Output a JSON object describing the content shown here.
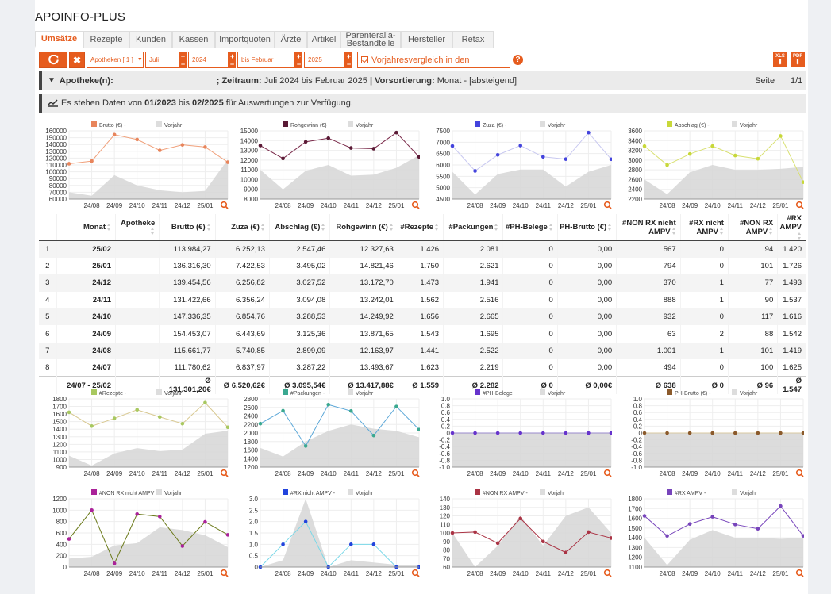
{
  "app": {
    "title": "APOINFO-PLUS"
  },
  "tabs": [
    {
      "label": "Umsätze",
      "active": true
    },
    {
      "label": "Rezepte"
    },
    {
      "label": "Kunden"
    },
    {
      "label": "Kassen"
    },
    {
      "label": "Importquoten"
    },
    {
      "label": "Ärzte"
    },
    {
      "label": "Artikel"
    },
    {
      "label": "Parenteralia-\nBestandteile"
    },
    {
      "label": "Hersteller"
    },
    {
      "label": "Retax"
    }
  ],
  "toolbar": {
    "refresh_icon": "refresh-icon",
    "clear_icon": "close-icon",
    "apotheken_select": "Apotheken [ 1 ]",
    "from_month": "Juli",
    "from_year": "2024",
    "to_month": "bis Februar",
    "to_year": "2025",
    "compare_label": "Vorjahresvergleich in den",
    "help": "?",
    "xls": "XLS",
    "pdf": "PDF"
  },
  "filter_bar": {
    "label": "Apotheke(n):",
    "zeitraum_prefix": "; Zeitraum:",
    "zeitraum_value": "Juli 2024 bis Februar 2025",
    "sep": "|",
    "sort_prefix": "Vorsortierung:",
    "sort_value": "Monat - [absteigend]",
    "page_label": "Seite",
    "page_value": "1/1"
  },
  "availability": {
    "prefix": "Es stehen Daten von",
    "from": "01/2023",
    "mid": "bis",
    "to": "02/2025",
    "suffix": "für Auswertungen zur Verfügung."
  },
  "table": {
    "headers": [
      "",
      "Monat",
      "Apotheke",
      "Brutto (€)",
      "Zuza (€)",
      "Abschlag (€)",
      "Rohgewinn (€)",
      "#Rezepte",
      "#Packungen",
      "#PH-Belege",
      "PH-Brutto (€)",
      "#NON RX nicht AMPV",
      "#RX nicht AMPV",
      "#NON RX AMPV",
      "#RX AMPV"
    ],
    "rows": [
      [
        "1",
        "25/02",
        "",
        "113.984,27",
        "6.252,13",
        "2.547,46",
        "12.327,63",
        "1.426",
        "2.081",
        "0",
        "0,00",
        "567",
        "0",
        "94",
        "1.420"
      ],
      [
        "2",
        "25/01",
        "",
        "136.316,30",
        "7.422,53",
        "3.495,02",
        "14.821,46",
        "1.750",
        "2.621",
        "0",
        "0,00",
        "794",
        "0",
        "101",
        "1.726"
      ],
      [
        "3",
        "24/12",
        "",
        "139.454,56",
        "6.256,82",
        "3.027,52",
        "13.172,70",
        "1.473",
        "1.941",
        "0",
        "0,00",
        "370",
        "1",
        "77",
        "1.493"
      ],
      [
        "4",
        "24/11",
        "",
        "131.422,66",
        "6.356,24",
        "3.094,08",
        "13.242,01",
        "1.562",
        "2.516",
        "0",
        "0,00",
        "888",
        "1",
        "90",
        "1.537"
      ],
      [
        "5",
        "24/10",
        "",
        "147.336,35",
        "6.854,76",
        "3.288,53",
        "14.249,92",
        "1.656",
        "2.665",
        "0",
        "0,00",
        "932",
        "0",
        "117",
        "1.616"
      ],
      [
        "6",
        "24/09",
        "",
        "154.453,07",
        "6.443,69",
        "3.125,36",
        "13.871,65",
        "1.543",
        "1.695",
        "0",
        "0,00",
        "63",
        "2",
        "88",
        "1.542"
      ],
      [
        "7",
        "24/08",
        "",
        "115.661,77",
        "5.740,85",
        "2.899,09",
        "12.163,97",
        "1.441",
        "2.522",
        "0",
        "0,00",
        "1.001",
        "1",
        "101",
        "1.419"
      ],
      [
        "8",
        "24/07",
        "",
        "111.780,62",
        "6.837,97",
        "3.287,22",
        "13.493,67",
        "1.623",
        "2.219",
        "0",
        "0,00",
        "494",
        "0",
        "100",
        "1.625"
      ]
    ],
    "footer": [
      "",
      "24/07 - 25/02",
      "",
      "Ø 131.301,20€",
      "Ø 6.520,62€",
      "Ø 3.095,54€",
      "Ø 13.417,88€",
      "Ø 1.559",
      "Ø 2.282",
      "Ø 0",
      "Ø 0,00€",
      "Ø 638",
      "Ø 0",
      "Ø 96",
      "Ø 1.547"
    ]
  },
  "charts_common": {
    "months": [
      "24/07",
      "24/08",
      "24/09",
      "24/10",
      "24/11",
      "24/12",
      "25/01",
      "25/02"
    ],
    "xticks": [
      "24/08",
      "24/09",
      "24/10",
      "24/11",
      "24/12",
      "25/01"
    ],
    "vorjahr_label": "Vorjahr",
    "zoom_icon": "zoom-icon"
  },
  "chart_data": [
    {
      "type": "line",
      "legend": "Brutto (€) -",
      "color": "#f0a07a",
      "marker": "#e8855c",
      "ticks": [
        "160000",
        "150000",
        "140000",
        "130000",
        "120000",
        "110000",
        "100000",
        "90000",
        "80000",
        "70000",
        "60000"
      ],
      "ylim": [
        60000,
        160000
      ],
      "values": [
        111780,
        115661,
        154453,
        147336,
        131422,
        139454,
        136316,
        113984
      ],
      "prev": [
        70000,
        65000,
        95000,
        80000,
        73000,
        70000,
        72000,
        118000
      ]
    },
    {
      "type": "line",
      "legend": "Rohgewinn (€)",
      "color": "#7a2a4a",
      "marker": "#5a1a35",
      "ticks": [
        "15000",
        "14000",
        "13000",
        "12000",
        "11000",
        "10000",
        "9000",
        "8000"
      ],
      "ylim": [
        8000,
        15000
      ],
      "values": [
        13493,
        12163,
        13871,
        14249,
        13242,
        13172,
        14821,
        12327
      ],
      "prev": [
        11000,
        9000,
        10900,
        11500,
        10400,
        10500,
        11200,
        12500
      ]
    },
    {
      "type": "line",
      "legend": "Zuza (€) -",
      "color": "#c8c8f0",
      "marker": "#4444dd",
      "ticks": [
        "7500",
        "7000",
        "6500",
        "6000",
        "5500",
        "5000",
        "4500"
      ],
      "ylim": [
        4500,
        7500
      ],
      "values": [
        6837,
        5740,
        6443,
        6854,
        6356,
        6256,
        7422,
        6252
      ],
      "prev": [
        5700,
        4700,
        5600,
        5800,
        5800,
        5050,
        5700,
        6000
      ]
    },
    {
      "type": "line",
      "legend": "Abschlag (€) -",
      "color": "#d8e070",
      "marker": "#c8d83a",
      "ticks": [
        "3600",
        "3400",
        "3200",
        "3000",
        "2800",
        "2600",
        "2400",
        "2200"
      ],
      "ylim": [
        2200,
        3600
      ],
      "values": [
        3287,
        2899,
        3125,
        3288,
        3094,
        3027,
        3495,
        2547
      ],
      "prev": [
        2600,
        2300,
        2750,
        2900,
        2800,
        2800,
        2820,
        2860
      ]
    },
    {
      "type": "line",
      "legend": "#Rezepte -",
      "color": "#d8c890",
      "marker": "#a8c860",
      "ticks": [
        "1800",
        "1700",
        "1600",
        "1500",
        "1400",
        "1300",
        "1200",
        "1100",
        "1000",
        "900"
      ],
      "ylim": [
        900,
        1800
      ],
      "values": [
        1623,
        1441,
        1543,
        1656,
        1562,
        1473,
        1750,
        1426
      ],
      "prev": [
        1050,
        920,
        1080,
        1150,
        1110,
        1130,
        1340,
        1380
      ]
    },
    {
      "type": "line",
      "legend": "#Packungen -",
      "color": "#5da8d8",
      "marker": "#3aa890",
      "ticks": [
        "2800",
        "2600",
        "2400",
        "2200",
        "2000",
        "1800",
        "1600",
        "1400",
        "1200"
      ],
      "ylim": [
        1200,
        2800
      ],
      "values": [
        2219,
        2522,
        1695,
        2665,
        2516,
        1941,
        2621,
        2081
      ],
      "prev": [
        1650,
        1450,
        1800,
        2050,
        2200,
        2100,
        2050,
        1900
      ]
    },
    {
      "type": "line",
      "legend": "#PH-Belege",
      "color": "#9988cc",
      "marker": "#6633cc",
      "ticks": [
        "1.0",
        "0.8",
        "0.6",
        "0.4",
        "0.2",
        "0",
        "-0.2",
        "-0.4",
        "-0.6",
        "-0.8",
        "-1.0"
      ],
      "ylim": [
        -1,
        1
      ],
      "values": [
        0,
        0,
        0,
        0,
        0,
        0,
        0,
        0
      ],
      "prev": [
        0,
        0,
        0,
        0,
        0,
        0,
        0,
        0
      ]
    },
    {
      "type": "line",
      "legend": "PH-Brutto (€) -",
      "color": "#d8c8a0",
      "marker": "#8b5a2b",
      "ticks": [
        "1.0",
        "0.8",
        "0.6",
        "0.4",
        "0.2",
        "0",
        "-0.2",
        "-0.4",
        "-0.6",
        "-0.8",
        "-1.0"
      ],
      "ylim": [
        -1,
        1
      ],
      "values": [
        0,
        0,
        0,
        0,
        0,
        0,
        0,
        0
      ],
      "prev": [
        0,
        0,
        0,
        0,
        0,
        0,
        0,
        0
      ]
    },
    {
      "type": "line",
      "legend": "#NON RX nicht AMPV",
      "color": "#6b7a1a",
      "marker": "#aa2299",
      "ticks": [
        "1200",
        "1000",
        "800",
        "600",
        "400",
        "200",
        "0"
      ],
      "ylim": [
        0,
        1200
      ],
      "values": [
        494,
        1001,
        63,
        932,
        888,
        370,
        794,
        567
      ],
      "prev": [
        150,
        180,
        380,
        420,
        700,
        650,
        560,
        350
      ]
    },
    {
      "type": "line",
      "legend": "#RX nicht AMPV -",
      "color": "#7ad8e8",
      "marker": "#2244dd",
      "ticks": [
        "3.0",
        "2.5",
        "2.0",
        "1.5",
        "1.0",
        "0.5",
        "0"
      ],
      "ylim": [
        0,
        3
      ],
      "values": [
        0,
        1,
        2,
        0,
        1,
        1,
        0,
        0
      ],
      "prev": [
        0,
        0.3,
        3,
        0,
        0.3,
        0.2,
        0.1,
        0.1
      ]
    },
    {
      "type": "line",
      "legend": "#NON RX AMPV -",
      "color": "#aa3344",
      "marker": "#aa3344",
      "ticks": [
        "140",
        "130",
        "120",
        "110",
        "100",
        "90",
        "80",
        "70",
        "60"
      ],
      "ylim": [
        60,
        140
      ],
      "values": [
        100,
        101,
        88,
        117,
        90,
        77,
        101,
        94
      ],
      "prev": [
        100,
        60,
        85,
        120,
        85,
        120,
        130,
        100
      ]
    },
    {
      "type": "line",
      "legend": "#RX AMPV -",
      "color": "#7744bb",
      "marker": "#7744bb",
      "ticks": [
        "1800",
        "1700",
        "1600",
        "1500",
        "1400",
        "1300",
        "1200",
        "1100"
      ],
      "ylim": [
        1100,
        1800
      ],
      "values": [
        1625,
        1419,
        1542,
        1616,
        1537,
        1493,
        1726,
        1420
      ],
      "prev": [
        1400,
        1120,
        1380,
        1480,
        1400,
        1400,
        1390,
        1400
      ]
    }
  ]
}
